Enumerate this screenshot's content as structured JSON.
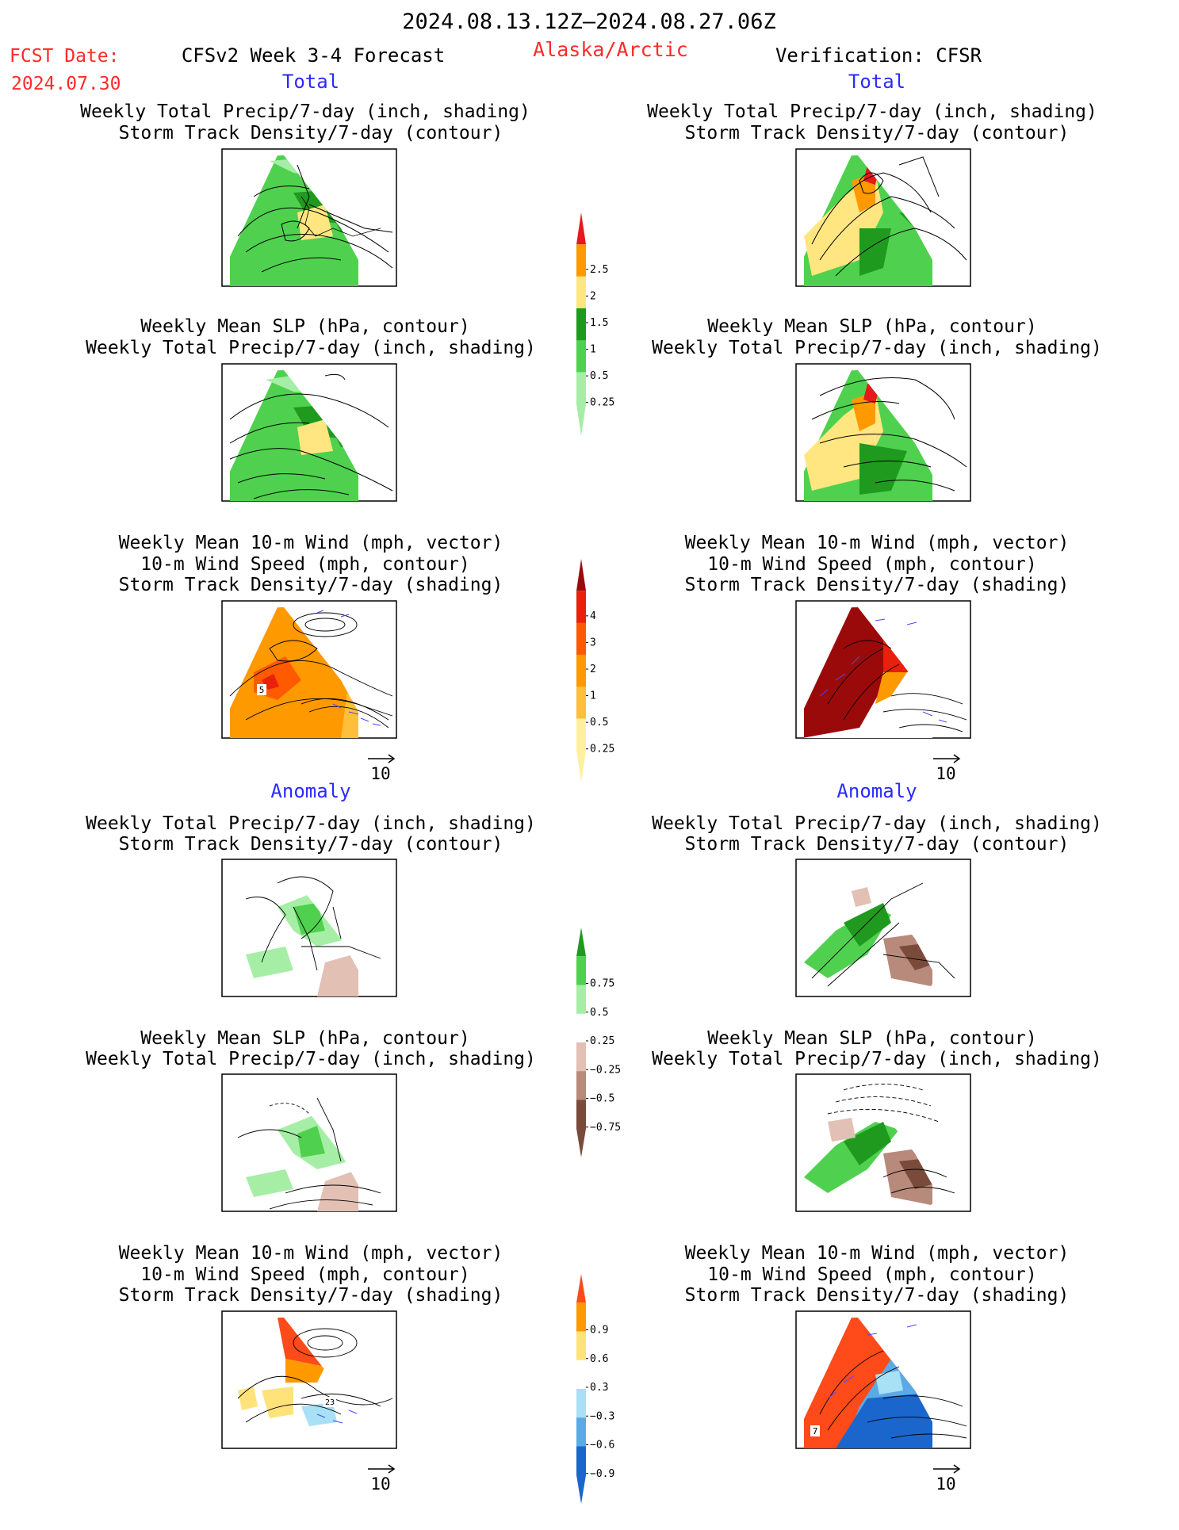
{
  "header": {
    "date_range": "2024.08.13.12Z–2024.08.27.06Z",
    "fcst_label": "FCST Date:",
    "fcst_date": "2024.07.30",
    "model": "CFSv2 Week 3-4 Forecast",
    "region": "Alaska/Arctic",
    "verification": "Verification: CFSR"
  },
  "sections": {
    "total_left": "Total",
    "total_right": "Total",
    "anomaly_left": "Anomaly",
    "anomaly_right": "Anomaly"
  },
  "titles": {
    "precip_storm": [
      "Weekly Total Precip/7-day (inch, shading)",
      "Storm Track Density/7-day (contour)"
    ],
    "slp_precip": [
      "Weekly Mean SLP (hPa, contour)",
      "Weekly Total Precip/7-day (inch, shading)"
    ],
    "wind": [
      "Weekly Mean 10-m Wind (mph, vector)",
      "10-m Wind Speed (mph, contour)",
      "Storm Track Density/7-day (shading)"
    ]
  },
  "vector_ref": "10",
  "panels": {
    "total_precip_fcst": {
      "storm_label": ""
    },
    "wind_total_fcst": {
      "contour_label": "5"
    },
    "wind_anom_fcst": {
      "contour_label": "23"
    },
    "wind_anom_obs": {
      "contour_label": "7"
    }
  },
  "colorbars": {
    "precip_total": {
      "labels": [
        "2.5",
        "2",
        "1.5",
        "1",
        "0.5",
        "0.25"
      ],
      "colors": [
        "#e41a1c",
        "#ff9900",
        "#ffe680",
        "#1f9a1f",
        "#4fd14f",
        "#a6eea6"
      ]
    },
    "storm_total": {
      "labels": [
        "4",
        "3",
        "2",
        "1",
        "0.5",
        "0.25"
      ],
      "colors": [
        "#9b0a0a",
        "#e8200c",
        "#ff5a00",
        "#ff9900",
        "#ffbf3a",
        "#fff0a0"
      ]
    },
    "precip_anom": {
      "labels": [
        "0.75",
        "0.5",
        "0.25",
        "−0.25",
        "−0.5",
        "−0.75"
      ],
      "colors": [
        "#1f9a1f",
        "#4fd14f",
        "#a6eea6",
        "#ffffff",
        "#e2c0b4",
        "#b88a7c",
        "#7a4a3a"
      ]
    },
    "storm_anom": {
      "labels": [
        "0.9",
        "0.6",
        "0.3",
        "−0.3",
        "−0.6",
        "−0.9"
      ],
      "colors": [
        "#ff4a1a",
        "#ff9900",
        "#ffe27a",
        "#ffffff",
        "#a8e0f5",
        "#5aaae6",
        "#1a66cc"
      ]
    }
  }
}
